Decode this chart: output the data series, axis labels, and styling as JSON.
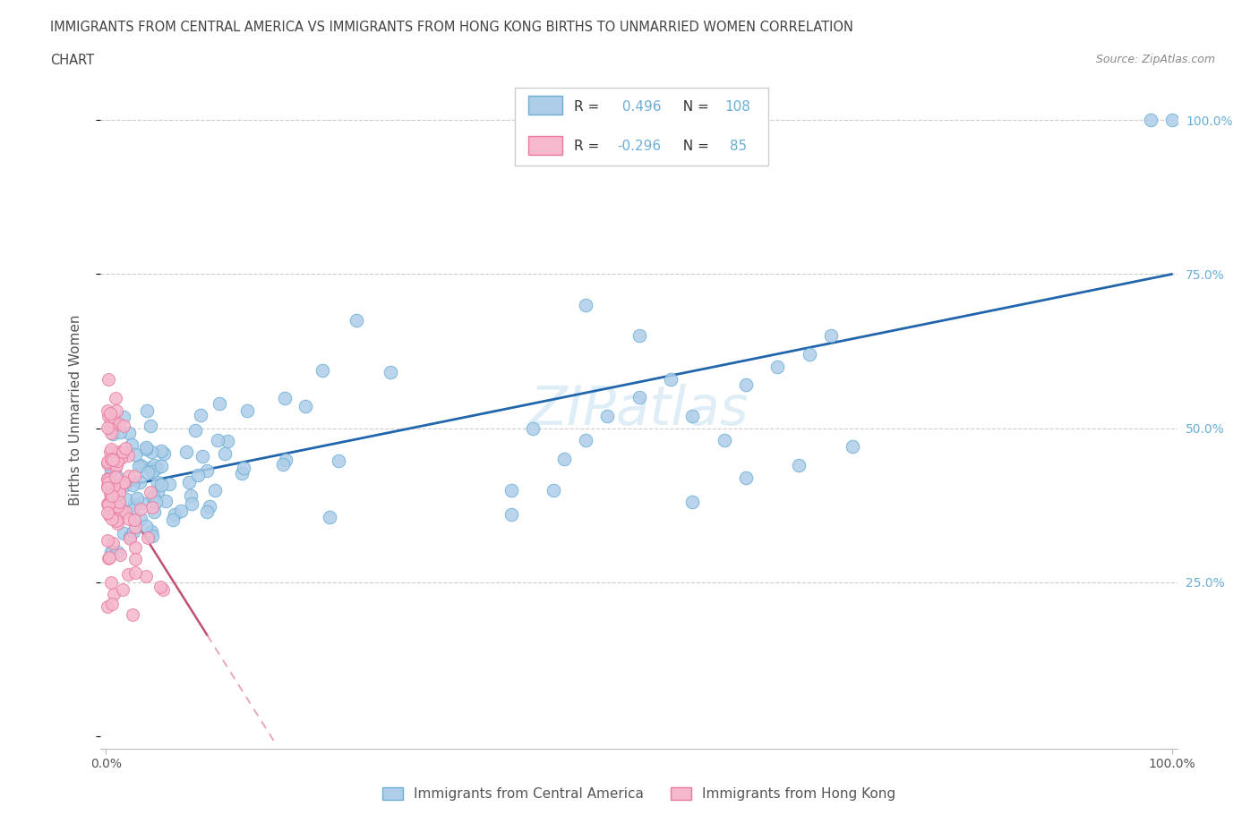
{
  "title_line1": "IMMIGRANTS FROM CENTRAL AMERICA VS IMMIGRANTS FROM HONG KONG BIRTHS TO UNMARRIED WOMEN CORRELATION",
  "title_line2": "CHART",
  "source": "Source: ZipAtlas.com",
  "ylabel": "Births to Unmarried Women",
  "legend_blue_label": "Immigrants from Central America",
  "legend_pink_label": "Immigrants from Hong Kong",
  "legend_r_blue": "0.496",
  "legend_n_blue": "108",
  "legend_r_pink": "-0.296",
  "legend_n_pink": "85",
  "watermark": "ZIPatlas",
  "blue_dot_fill": "#aecde8",
  "blue_dot_edge": "#6aaed6",
  "pink_dot_fill": "#f5b8cc",
  "pink_dot_edge": "#e878a0",
  "trend_blue_color": "#2166ac",
  "trend_pink_solid": "#c0516e",
  "trend_pink_dash": "#e8a0b4",
  "grid_color": "#cccccc",
  "background_color": "#ffffff",
  "title_color": "#444444",
  "right_label_color": "#6aaed6",
  "source_color": "#888888",
  "ylabel_color": "#555555",
  "tick_color": "#555555"
}
